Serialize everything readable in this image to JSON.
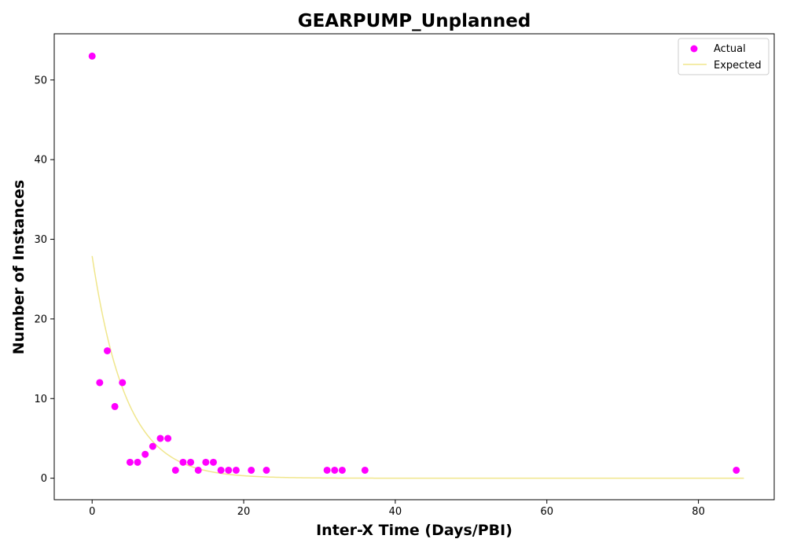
{
  "chart_data": {
    "type": "scatter",
    "title": "GEARPUMP_Unplanned",
    "xlabel": "Inter-X Time (Days/PBI)",
    "ylabel": "Number of Instances",
    "xlim": [
      -5,
      90
    ],
    "ylim": [
      -2.7,
      55.8
    ],
    "xticks": [
      0,
      20,
      40,
      60,
      80
    ],
    "yticks": [
      0,
      10,
      20,
      30,
      40,
      50
    ],
    "grid": false,
    "legend_position": "top-right",
    "series": [
      {
        "name": "Actual",
        "kind": "scatter",
        "color": "#ff00ff",
        "points": [
          [
            0,
            53
          ],
          [
            1,
            12
          ],
          [
            2,
            16
          ],
          [
            3,
            9
          ],
          [
            4,
            12
          ],
          [
            5,
            2
          ],
          [
            6,
            2
          ],
          [
            7,
            3
          ],
          [
            8,
            4
          ],
          [
            9,
            5
          ],
          [
            10,
            5
          ],
          [
            11,
            1
          ],
          [
            12,
            2
          ],
          [
            13,
            2
          ],
          [
            14,
            1
          ],
          [
            15,
            2
          ],
          [
            16,
            2
          ],
          [
            17,
            1
          ],
          [
            18,
            1
          ],
          [
            19,
            1
          ],
          [
            21,
            1
          ],
          [
            23,
            1
          ],
          [
            31,
            1
          ],
          [
            32,
            1
          ],
          [
            33,
            1
          ],
          [
            36,
            1
          ],
          [
            85,
            1
          ]
        ]
      },
      {
        "name": "Expected",
        "kind": "line",
        "color": "#f0e68c",
        "function": "exponential",
        "a": 27.9,
        "rate": 0.225,
        "x_range": [
          0,
          86
        ]
      }
    ]
  }
}
